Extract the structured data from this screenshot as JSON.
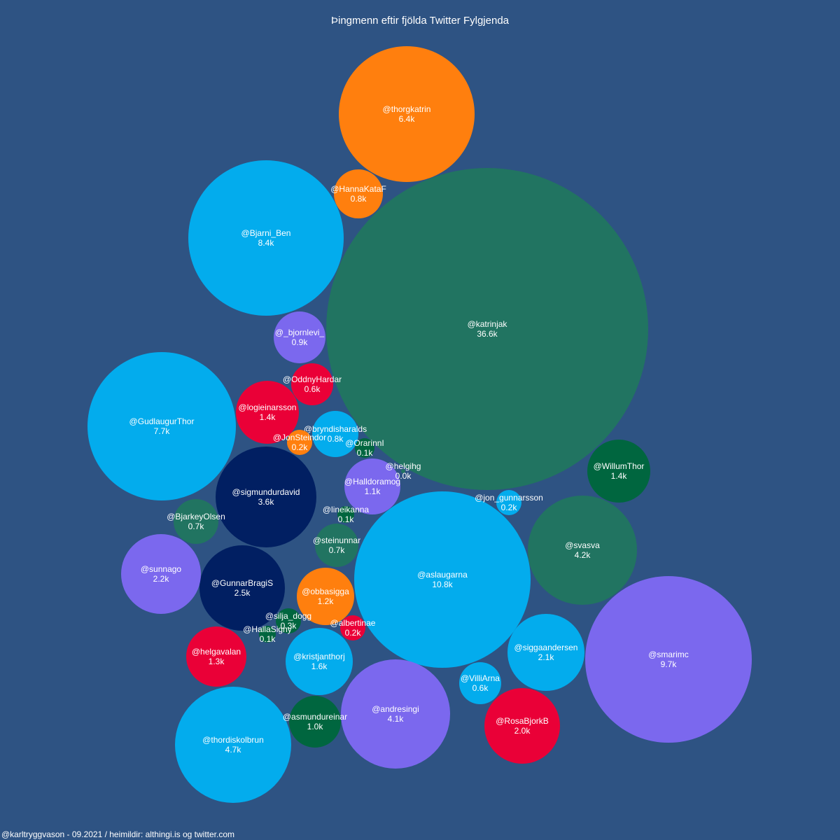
{
  "chart_data": {
    "type": "bubble",
    "title": "Þingmenn eftir fjölda Twitter Fylgjenda",
    "footer": "@karltryggvason - 09.2021 / heimildir: althingi.is og twitter.com",
    "unit_note": "followers in thousands",
    "colors": {
      "background": "#2e5383",
      "orange": "#ff7f0e",
      "teal": "#217461",
      "cyan": "#03aced",
      "purple": "#7b68ee",
      "red": "#ea0037",
      "navy": "#011f62",
      "darkgreen": "#00663f"
    },
    "bubbles": [
      {
        "handle": "@katrinjak",
        "label": "36.6k",
        "value": 36.6,
        "color": "teal"
      },
      {
        "handle": "@aslaugarna",
        "label": "10.8k",
        "value": 10.8,
        "color": "cyan"
      },
      {
        "handle": "@smarimc",
        "label": "9.7k",
        "value": 9.7,
        "color": "purple"
      },
      {
        "handle": "@Bjarni_Ben",
        "label": "8.4k",
        "value": 8.4,
        "color": "cyan"
      },
      {
        "handle": "@GudlaugurThor",
        "label": "7.7k",
        "value": 7.7,
        "color": "cyan"
      },
      {
        "handle": "@thorgkatrin",
        "label": "6.4k",
        "value": 6.4,
        "color": "orange"
      },
      {
        "handle": "@thordiskolbrun",
        "label": "4.7k",
        "value": 4.7,
        "color": "cyan"
      },
      {
        "handle": "@svasva",
        "label": "4.2k",
        "value": 4.2,
        "color": "teal"
      },
      {
        "handle": "@andresingi",
        "label": "4.1k",
        "value": 4.1,
        "color": "purple"
      },
      {
        "handle": "@sigmundurdavid",
        "label": "3.6k",
        "value": 3.6,
        "color": "navy"
      },
      {
        "handle": "@GunnarBragiS",
        "label": "2.5k",
        "value": 2.5,
        "color": "navy"
      },
      {
        "handle": "@sunnago",
        "label": "2.2k",
        "value": 2.2,
        "color": "purple"
      },
      {
        "handle": "@siggaandersen",
        "label": "2.1k",
        "value": 2.1,
        "color": "cyan"
      },
      {
        "handle": "@RosaBjorkB",
        "label": "2.0k",
        "value": 2.0,
        "color": "red"
      },
      {
        "handle": "@kristjanthorj",
        "label": "1.6k",
        "value": 1.6,
        "color": "cyan"
      },
      {
        "handle": "@logieinarsson",
        "label": "1.4k",
        "value": 1.4,
        "color": "red"
      },
      {
        "handle": "@WillumThor",
        "label": "1.4k",
        "value": 1.4,
        "color": "darkgreen"
      },
      {
        "handle": "@helgavalan",
        "label": "1.3k",
        "value": 1.3,
        "color": "red"
      },
      {
        "handle": "@obbasigga",
        "label": "1.2k",
        "value": 1.2,
        "color": "orange"
      },
      {
        "handle": "@Halldoramog",
        "label": "1.1k",
        "value": 1.1,
        "color": "purple"
      },
      {
        "handle": "@asmundureinar",
        "label": "1.0k",
        "value": 1.0,
        "color": "darkgreen"
      },
      {
        "handle": "@_bjornlevi_",
        "label": "0.9k",
        "value": 0.9,
        "color": "purple"
      },
      {
        "handle": "@HannaKataF",
        "label": "0.8k",
        "value": 0.8,
        "color": "orange"
      },
      {
        "handle": "@bryndisharalds",
        "label": "0.8k",
        "value": 0.8,
        "color": "cyan"
      },
      {
        "handle": "@BjarkeyOlsen",
        "label": "0.7k",
        "value": 0.7,
        "color": "teal"
      },
      {
        "handle": "@steinunnar",
        "label": "0.7k",
        "value": 0.7,
        "color": "teal"
      },
      {
        "handle": "@OddnyHardar",
        "label": "0.6k",
        "value": 0.6,
        "color": "red"
      },
      {
        "handle": "@VilliArna",
        "label": "0.6k",
        "value": 0.6,
        "color": "cyan"
      },
      {
        "handle": "@silja_dogg",
        "label": "0.3k",
        "value": 0.3,
        "color": "darkgreen"
      },
      {
        "handle": "@JonSteindor",
        "label": "0.2k",
        "value": 0.2,
        "color": "orange"
      },
      {
        "handle": "@jon_gunnarsson",
        "label": "0.2k",
        "value": 0.2,
        "color": "cyan"
      },
      {
        "handle": "@albertinae",
        "label": "0.2k",
        "value": 0.2,
        "color": "red"
      },
      {
        "handle": "@OrarinnI",
        "label": "0.1k",
        "value": 0.1,
        "color": "darkgreen"
      },
      {
        "handle": "@lineikanna",
        "label": "0.1k",
        "value": 0.1,
        "color": "darkgreen"
      },
      {
        "handle": "@HallaSigny",
        "label": "0.1k",
        "value": 0.1,
        "color": "darkgreen"
      },
      {
        "handle": "@helgihg",
        "label": "0.0k",
        "value": 0.0,
        "color": "teal"
      }
    ]
  }
}
